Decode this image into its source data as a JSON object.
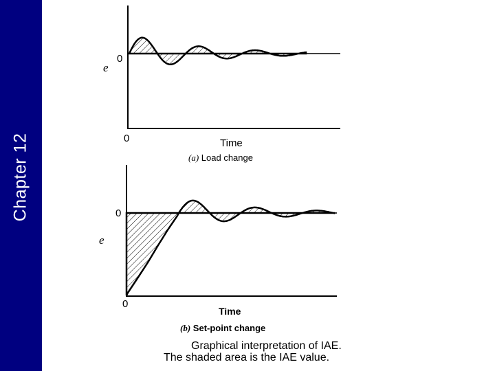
{
  "sidebar": {
    "title": "Chapter 12"
  },
  "plot_a": {
    "ylabel": "e",
    "zero_y": "0",
    "zero_x": "0",
    "xlabel": "Time",
    "subtitle_tag": "(a)",
    "subtitle": "Load change"
  },
  "plot_b": {
    "ylabel": "e",
    "zero_y": "0",
    "zero_x": "0",
    "xlabel": "Time",
    "subtitle_tag": "(b)",
    "subtitle": "Set-point change"
  },
  "caption": {
    "line1": "Graphical interpretation of IAE.",
    "line2": "The shaded area is the IAE value."
  }
}
